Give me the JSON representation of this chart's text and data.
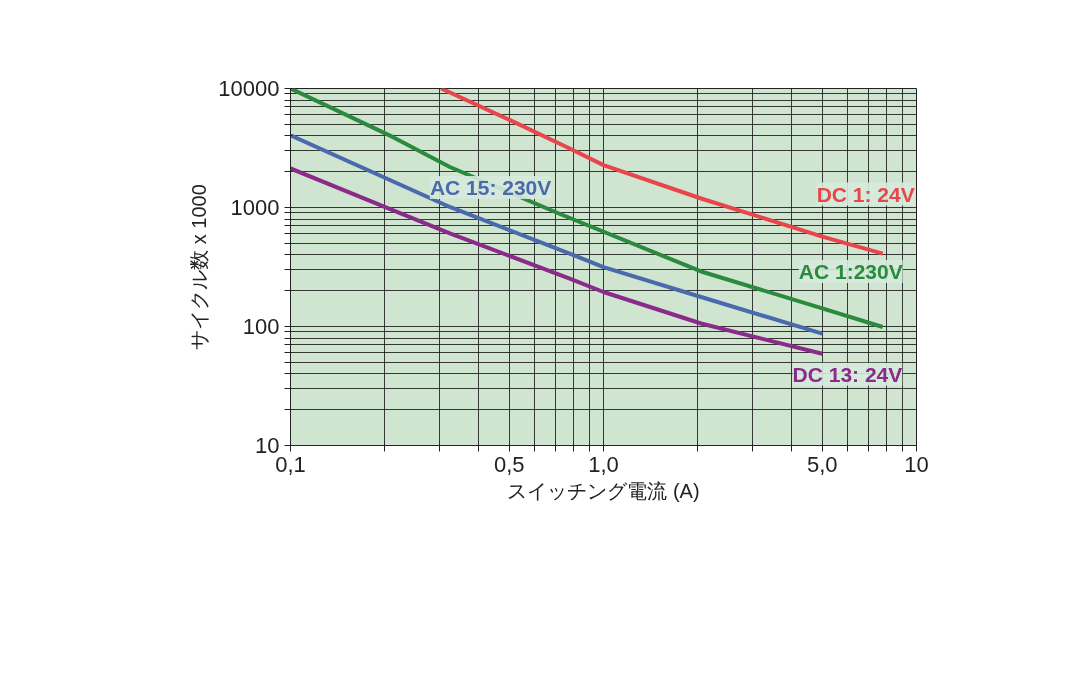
{
  "chart_data": {
    "type": "line",
    "xlabel": "スイッチング電流 (A)",
    "ylabel": "サイクル数 x 1000",
    "log": "xy",
    "grid": true,
    "marker": "none",
    "line_style": "solid",
    "xlim": [
      0.1,
      10
    ],
    "ylim": [
      10,
      10000
    ],
    "xticks": [
      {
        "value": 0.1,
        "label": "0,1"
      },
      {
        "value": 0.2,
        "label": null
      },
      {
        "value": 0.3,
        "label": null
      },
      {
        "value": 0.4,
        "label": null
      },
      {
        "value": 0.5,
        "label": "0,5"
      },
      {
        "value": 0.6,
        "label": null
      },
      {
        "value": 0.7,
        "label": null
      },
      {
        "value": 0.8,
        "label": null
      },
      {
        "value": 0.9,
        "label": null
      },
      {
        "value": 1,
        "label": "1,0"
      },
      {
        "value": 2,
        "label": null
      },
      {
        "value": 3,
        "label": null
      },
      {
        "value": 4,
        "label": null
      },
      {
        "value": 5,
        "label": "5,0"
      },
      {
        "value": 6,
        "label": null
      },
      {
        "value": 7,
        "label": null
      },
      {
        "value": 8,
        "label": null
      },
      {
        "value": 9,
        "label": null
      },
      10
    ],
    "yticks": [
      10,
      {
        "value": 20,
        "label": null
      },
      {
        "value": 30,
        "label": null
      },
      {
        "value": 40,
        "label": null
      },
      {
        "value": 50,
        "label": null
      },
      {
        "value": 60,
        "label": null
      },
      {
        "value": 70,
        "label": null
      },
      {
        "value": 80,
        "label": null
      },
      {
        "value": 90,
        "label": null
      },
      100,
      {
        "value": 200,
        "label": null
      },
      {
        "value": 300,
        "label": null
      },
      {
        "value": 400,
        "label": null
      },
      {
        "value": 500,
        "label": null
      },
      {
        "value": 600,
        "label": null
      },
      {
        "value": 700,
        "label": null
      },
      {
        "value": 800,
        "label": null
      },
      {
        "value": 900,
        "label": null
      },
      1000,
      {
        "value": 2000,
        "label": null
      },
      {
        "value": 3000,
        "label": null
      },
      {
        "value": 4000,
        "label": null
      },
      {
        "value": 5000,
        "label": null
      },
      {
        "value": 6000,
        "label": null
      },
      {
        "value": 7000,
        "label": null
      },
      {
        "value": 8000,
        "label": null
      },
      {
        "value": 9000,
        "label": null
      },
      10000
    ],
    "series": [
      {
        "name": "DC 1: 24V",
        "color": "#e8464a",
        "x": [
          0.303,
          0.503,
          0.78,
          1.0,
          2.05,
          5.0,
          7.8
        ],
        "values": [
          10000,
          5420,
          3130,
          2270,
          1190,
          570,
          410
        ]
      },
      {
        "name": "AC 1:230V",
        "color": "#2a8a3e",
        "x": [
          0.1,
          0.212,
          0.323,
          0.72,
          2.05,
          5.0,
          7.8
        ],
        "values": [
          10000,
          3920,
          2190,
          890,
          290,
          142,
          99
        ]
      },
      {
        "name": "AC 15: 230V",
        "color": "#4a6aad",
        "x": [
          0.1,
          0.323,
          0.78,
          1.0,
          2.05,
          5.0
        ],
        "values": [
          4050,
          1010,
          410,
          316,
          177,
          87
        ]
      },
      {
        "name": "DC 13: 24V",
        "color": "#8a2a8a",
        "x": [
          0.1,
          0.212,
          0.323,
          0.78,
          1.0,
          2.05,
          5.0
        ],
        "values": [
          2130,
          950,
          606,
          253,
          195,
          106,
          59
        ]
      }
    ]
  }
}
